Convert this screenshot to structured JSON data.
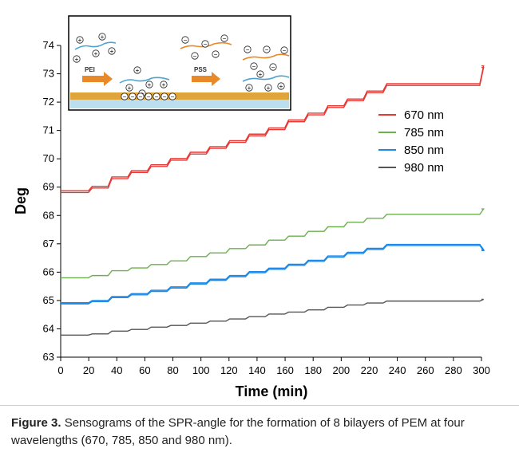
{
  "chart_data": {
    "type": "line",
    "xlabel": "Time (min)",
    "ylabel": "Deg",
    "xlim": [
      0,
      300
    ],
    "ylim": [
      63,
      74
    ],
    "xticks": [
      0,
      20,
      40,
      60,
      80,
      100,
      120,
      140,
      160,
      180,
      200,
      220,
      240,
      260,
      280,
      300
    ],
    "yticks": [
      63,
      64,
      65,
      66,
      67,
      68,
      69,
      70,
      71,
      72,
      73,
      74
    ],
    "grid": false,
    "legend_position": "right",
    "steps_at": [
      0,
      21,
      35,
      49,
      63,
      77,
      91,
      105,
      119,
      133,
      147,
      161,
      175,
      189,
      203,
      217,
      231,
      300
    ],
    "series": [
      {
        "name": "670 nm",
        "color": "#e53935",
        "split": 0.06,
        "values": [
          68.84,
          69.0,
          69.33,
          69.55,
          69.76,
          69.98,
          70.2,
          70.4,
          70.61,
          70.84,
          71.06,
          71.34,
          71.58,
          71.84,
          72.08,
          72.36,
          72.62,
          73.25
        ]
      },
      {
        "name": "785 nm",
        "color": "#6ab04c",
        "split": 0.0,
        "values": [
          65.8,
          65.88,
          66.05,
          66.15,
          66.27,
          66.4,
          66.55,
          66.68,
          66.83,
          66.96,
          67.13,
          67.27,
          67.44,
          67.6,
          67.76,
          67.9,
          68.04,
          68.23
        ]
      },
      {
        "name": "850 nm",
        "color": "#1e88e5",
        "split": 0.04,
        "values": [
          64.9,
          64.98,
          65.12,
          65.22,
          65.34,
          65.46,
          65.6,
          65.73,
          65.86,
          66.0,
          66.12,
          66.26,
          66.4,
          66.55,
          66.68,
          66.82,
          66.96,
          66.78
        ]
      },
      {
        "name": "980 nm",
        "color": "#555555",
        "split": 0.0,
        "values": [
          63.78,
          63.82,
          63.92,
          63.98,
          64.06,
          64.12,
          64.2,
          64.27,
          64.35,
          64.43,
          64.52,
          64.59,
          64.67,
          64.76,
          64.84,
          64.91,
          64.98,
          65.04
        ]
      }
    ]
  },
  "inset": {
    "label_pei": "PEI",
    "label_pss": "PSS",
    "plus": "+",
    "minus": "−",
    "colors": {
      "pei": "#4aa3d1",
      "pss": "#e8892a",
      "arrow": "#e8892a",
      "gold": "#e0a53a",
      "substrate": "#bcdff0"
    }
  },
  "caption": {
    "label": "Figure 3.",
    "text": "Sensograms of the SPR-angle for the formation of 8 bilayers of PEM at four wavelengths (670, 785, 850 and 980 nm)."
  }
}
